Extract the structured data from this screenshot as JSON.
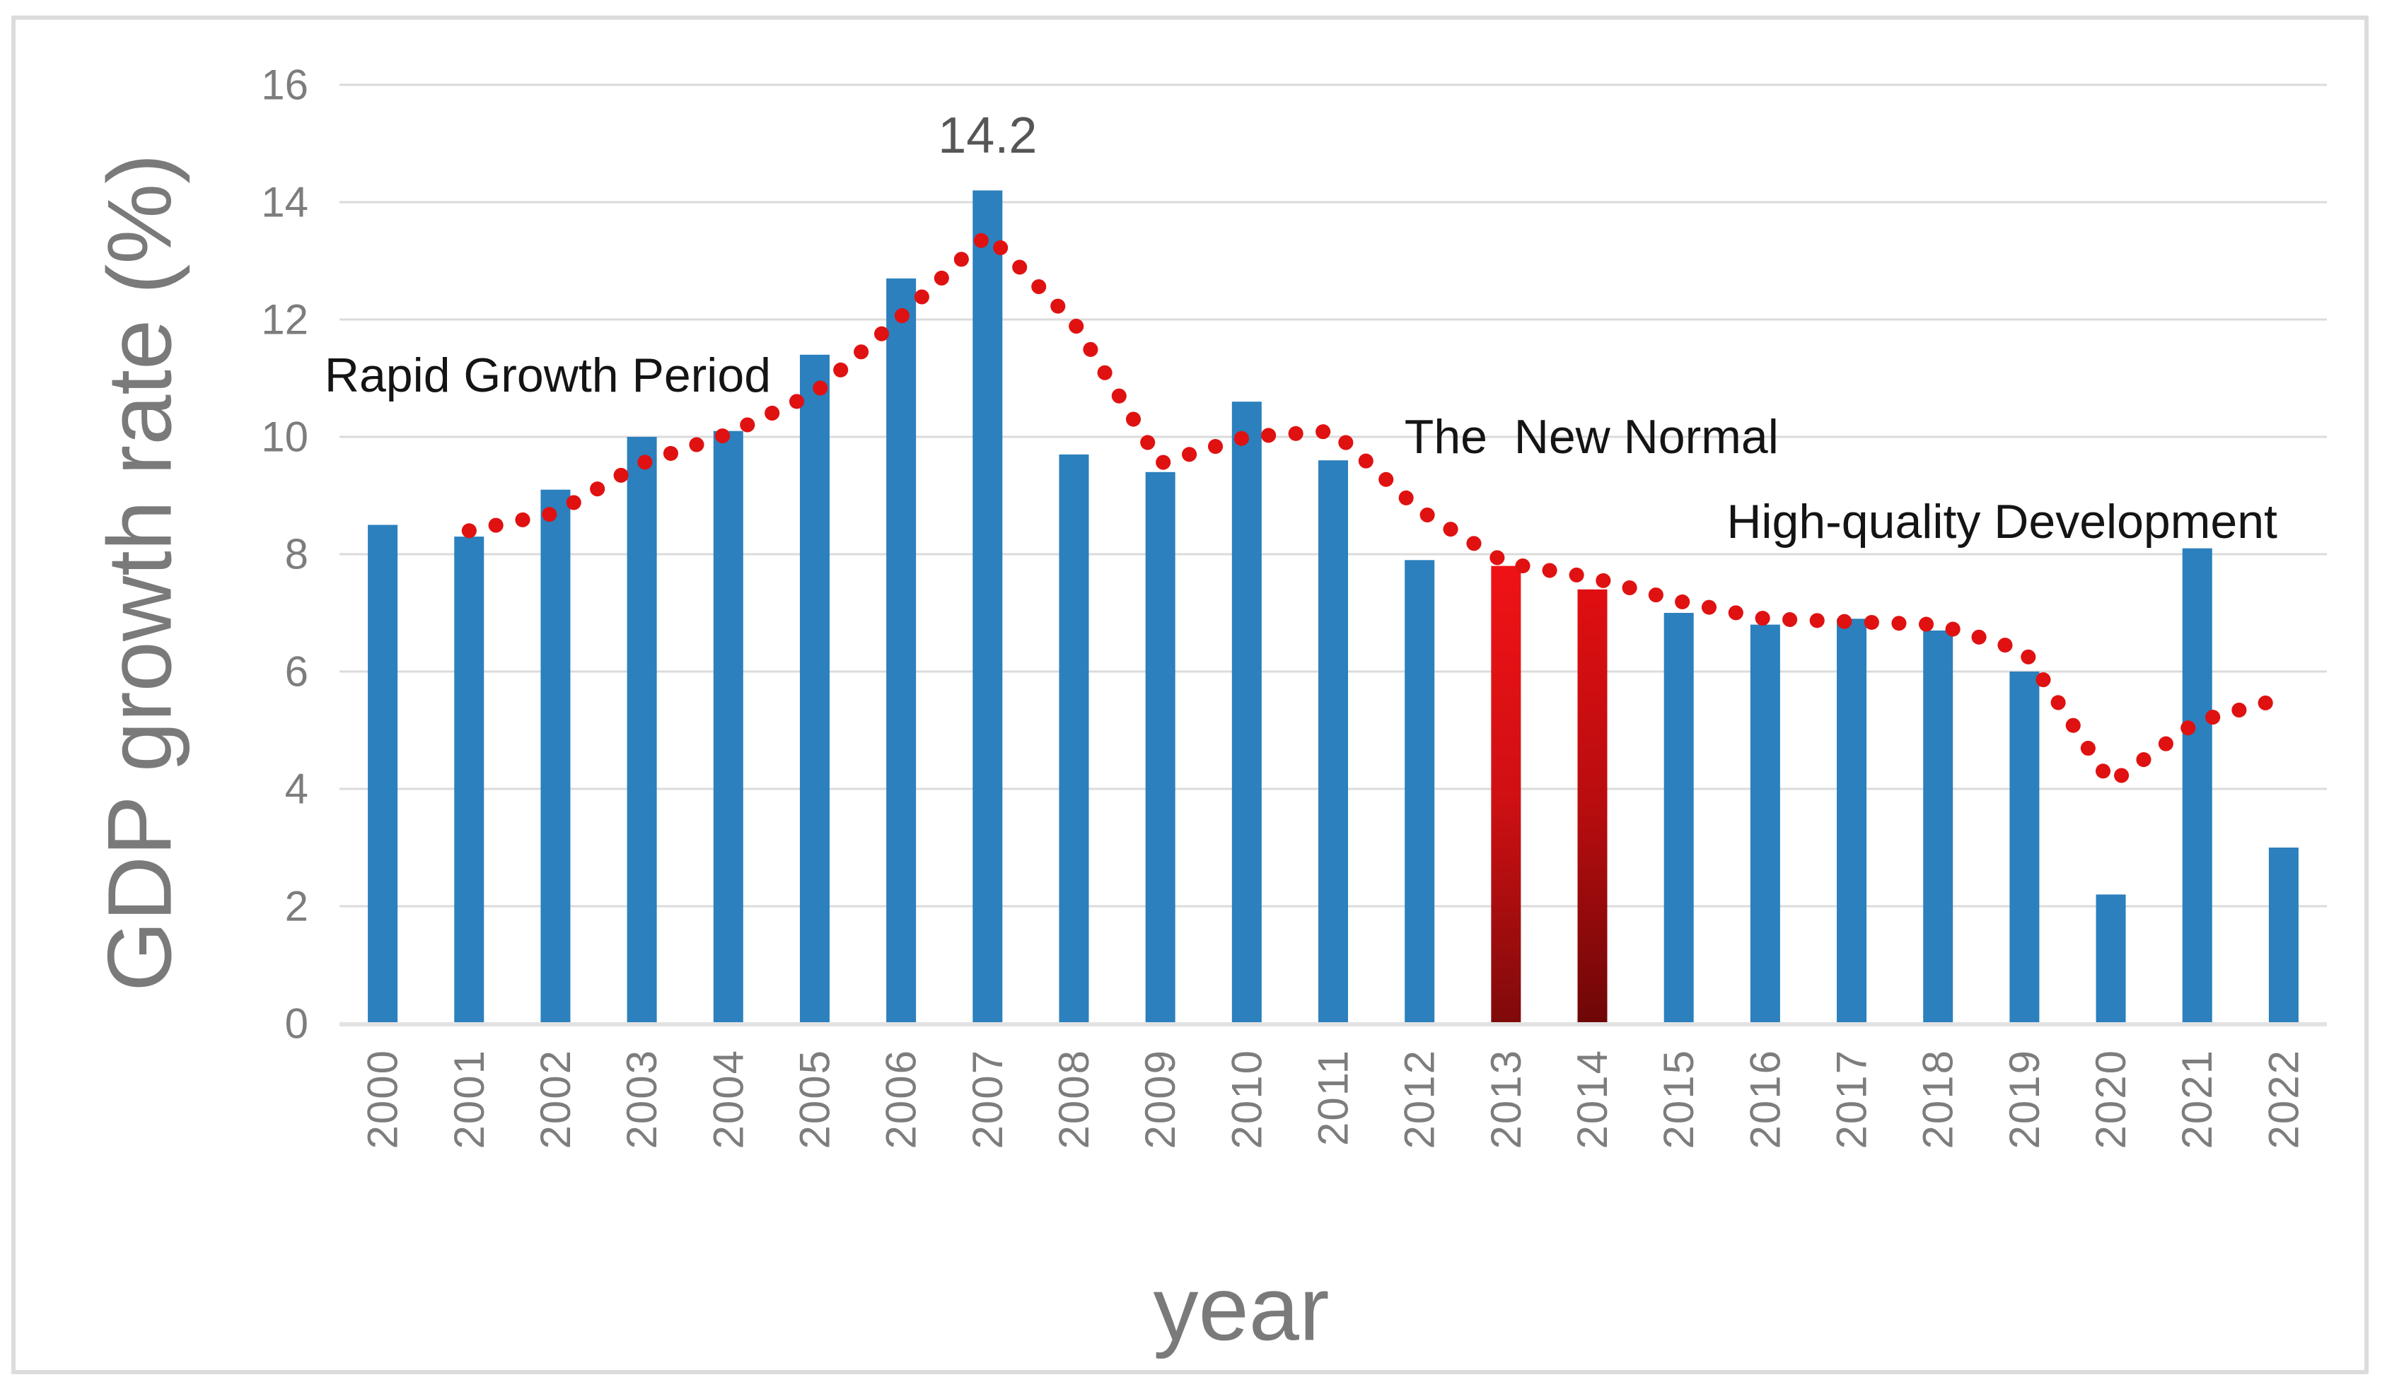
{
  "figure": {
    "y_axis_title": "GDP growth rate (%)",
    "x_axis_title": "year"
  },
  "chart_data": {
    "type": "bar",
    "title": "",
    "xlabel": "year",
    "ylabel": "GDP growth rate (%)",
    "ylim": [
      0,
      16
    ],
    "y_ticks": [
      0,
      2,
      4,
      6,
      8,
      10,
      12,
      14,
      16
    ],
    "grid": true,
    "legend": false,
    "categories": [
      "2000",
      "2001",
      "2002",
      "2003",
      "2004",
      "2005",
      "2006",
      "2007",
      "2008",
      "2009",
      "2010",
      "2011",
      "2012",
      "2013",
      "2014",
      "2015",
      "2016",
      "2017",
      "2018",
      "2019",
      "2020",
      "2021",
      "2022"
    ],
    "values": [
      8.5,
      8.3,
      9.1,
      10.0,
      10.1,
      11.4,
      12.7,
      14.2,
      9.7,
      9.4,
      10.6,
      9.6,
      7.9,
      7.8,
      7.4,
      7.0,
      6.8,
      6.9,
      6.7,
      6.0,
      2.2,
      8.1,
      3.0
    ],
    "bar_color": "#2b80bd",
    "highlighted_bars": [
      {
        "category": "2013",
        "gradient_top": "#ef1216",
        "gradient_mid": "#d01013",
        "gradient_bottom": "#7f0a0a"
      },
      {
        "category": "2014",
        "gradient_top": "#e00e11",
        "gradient_mid": "#b80d0f",
        "gradient_bottom": "#6e0707"
      }
    ],
    "point_label": {
      "category": "2007",
      "text": "14.2"
    },
    "trendline": {
      "type": "moving_average",
      "period": 2,
      "style": "round-dot",
      "color": "#e01111",
      "values": [
        null,
        8.4,
        8.7,
        9.55,
        10.05,
        10.75,
        12.05,
        13.45,
        11.95,
        9.55,
        10.0,
        10.1,
        8.75,
        7.85,
        7.6,
        7.2,
        6.9,
        6.85,
        6.8,
        6.35,
        4.1,
        5.15,
        5.55
      ]
    },
    "annotations": [
      {
        "text": "Rapid Growth Period",
        "x_index": 1.91,
        "y_value": 11.05
      },
      {
        "text": "The  New Normal",
        "x_index": 13.99,
        "y_value": 10.0
      },
      {
        "text": "High-quality Development",
        "x_index": 18.74,
        "y_value": 8.55
      }
    ],
    "colors": {
      "gridline": "#dbdbdb",
      "baseline": "#e3e3e3",
      "tick_text": "#7d7d7d",
      "axis_title_text": "#7a7a7a",
      "annotation_text": "#141414",
      "point_label_text": "#565656"
    }
  }
}
